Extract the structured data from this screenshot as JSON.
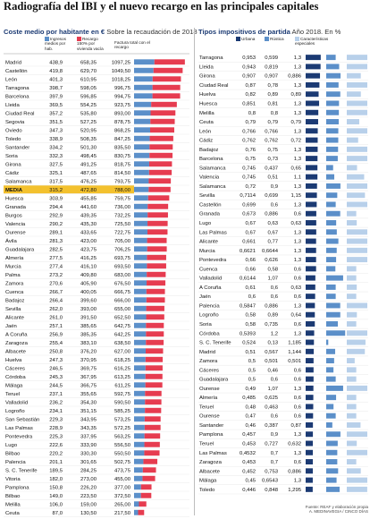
{
  "title": "Radiografía del IBI y el nuevo recargo en las principales capitales",
  "left_heading": {
    "title": "Coste medio por habitante en €",
    "subtitle": "Sobre la recaudación de 2018"
  },
  "right_heading": {
    "title": "Tipos impositivos de partida",
    "subtitle": "Año 2018. En %"
  },
  "source_lines": [
    "Fuente: REAF y elaboración propia",
    "A. MEDINAVEGIA / CINCO DÍAS"
  ],
  "colors": {
    "navy": "#1b3a73",
    "blue": "#5b8fc9",
    "red": "#e63c50",
    "lightblue": "#b8d0ea",
    "highlight": "#f3c12e",
    "title": "#1b3a73"
  },
  "chart_data": [
    {
      "type": "bar",
      "title": "Coste medio por habitante en €",
      "subtitle": "Sobre la recaudación de 2018",
      "legend": [
        "Ingresos medios por hab.",
        "Recargo 150% por vivienda vacía",
        "Factura total con el recargo"
      ],
      "highlight": "MEDIA",
      "categories": [
        "Madrid",
        "Castellón",
        "León",
        "Tarragona",
        "Barcelona",
        "Lleida",
        "Ciudad Real",
        "Segovia",
        "Oviedo",
        "Toledo",
        "Santander",
        "Soria",
        "Girona",
        "Cádiz",
        "Salamanca",
        "MEDIA",
        "Huesca",
        "Granada",
        "Burgos",
        "Valencia",
        "Ourense",
        "Ávila",
        "Guadalajara",
        "Almería",
        "Murcia",
        "Palma",
        "Zamora",
        "Cuenca",
        "Badajoz",
        "Sevilla",
        "Alicante",
        "Jaén",
        "A Coruña",
        "Zaragoza",
        "Albacete",
        "Huelva",
        "Cáceres",
        "Córdoba",
        "Málaga",
        "Teruel",
        "Valladolid",
        "Logroño",
        "San Sebastián",
        "Las Palmas",
        "Pontevedra",
        "Lugo",
        "Bilbao",
        "Palencia",
        "S. C. Tenerife",
        "Vitoria",
        "Pamplona",
        "Bilbao",
        "Melilla",
        "Ceuta"
      ],
      "series": [
        {
          "name": "Ingresos medios por hab.",
          "values": [
            438.9,
            419.8,
            401.3,
            398.7,
            397.9,
            369.5,
            357.2,
            351.5,
            347.3,
            338.9,
            334.2,
            332.3,
            327.5,
            325.1,
            317.5,
            315.2,
            303.9,
            294.4,
            292.9,
            290.2,
            289.1,
            281.3,
            282.5,
            277.5,
            277.4,
            273.2,
            270.6,
            266.7,
            266.4,
            262.0,
            261.0,
            257.1,
            256.9,
            255.4,
            250.8,
            247.3,
            246.5,
            245.3,
            244.5,
            237.1,
            236.2,
            234.1,
            229.3,
            228.9,
            225.3,
            222.6,
            220.2,
            201.1,
            189.5,
            182.0,
            150.8,
            149.0,
            106.0,
            87.0
          ]
        },
        {
          "name": "Recargo 150% por vivienda vacía",
          "values": [
            658.35,
            629.7,
            610.95,
            598.05,
            596.85,
            554.25,
            535.8,
            527.25,
            520.95,
            508.35,
            501.3,
            498.45,
            491.25,
            487.65,
            476.25,
            472.8,
            455.85,
            441.6,
            439.35,
            435.3,
            433.65,
            423.0,
            423.75,
            416.25,
            416.1,
            409.8,
            405.9,
            400.05,
            399.6,
            393.0,
            391.5,
            385.65,
            385.35,
            383.1,
            376.2,
            370.95,
            369.75,
            367.95,
            366.75,
            355.65,
            354.3,
            351.15,
            343.95,
            343.35,
            337.95,
            333.9,
            330.3,
            301.65,
            284.25,
            273.0,
            226.2,
            223.5,
            159.0,
            130.5
          ]
        },
        {
          "name": "Factura total con el recargo",
          "values": [
            1097.25,
            1049.5,
            1018.25,
            996.75,
            994.75,
            923.75,
            893.0,
            878.75,
            868.25,
            847.25,
            835.5,
            830.75,
            818.75,
            814.5,
            793.75,
            788.0,
            759.75,
            736.0,
            732.25,
            725.5,
            722.75,
            705.0,
            706.25,
            693.75,
            693.5,
            683.0,
            676.5,
            666.75,
            666.0,
            655.0,
            652.5,
            642.75,
            642.25,
            638.5,
            627.0,
            618.25,
            616.25,
            613.25,
            611.25,
            592.75,
            590.5,
            585.25,
            573.25,
            572.25,
            563.25,
            556.5,
            550.5,
            502.75,
            473.75,
            455.0,
            377.0,
            372.5,
            265.0,
            217.5
          ]
        }
      ],
      "xlim": [
        0,
        1100
      ]
    },
    {
      "type": "bar",
      "title": "Tipos impositivos de partida",
      "subtitle": "Año 2018. En %",
      "legend": [
        "Urbana",
        "Rústica",
        "Características especiales"
      ],
      "categories": [
        "Tarragona",
        "Lleida",
        "Girona",
        "Ciudad Real",
        "Huelva",
        "Huesca",
        "Melilla",
        "Ceuta",
        "León",
        "Cádiz",
        "Badajoz",
        "Barcelona",
        "Salamanca",
        "Valencia",
        "Salamanca",
        "Sevilla",
        "Castellón",
        "Granada",
        "Lugo",
        "Las Palmas",
        "Alicante",
        "Murcia",
        "Pontevedra",
        "Cuenca",
        "Valladolid",
        "A Coruña",
        "Jaén",
        "Palencia",
        "Logroño",
        "Soria",
        "Córdoba",
        "S. C. Tenerife",
        "Madrid",
        "Zamora",
        "Cáceres",
        "Guadalajara",
        "Ourense",
        "Almería",
        "Teruel",
        "Ourense",
        "Santander",
        "Pamplona",
        "Teruel",
        "Las Palmas",
        "Zaragoza",
        "Albacete",
        "Málaga",
        "Toledo"
      ],
      "series": [
        {
          "name": "Urbana",
          "values": [
            0.953,
            0.943,
            0.907,
            0.87,
            0.82,
            0.851,
            0.8,
            0.79,
            0.766,
            0.762,
            0.76,
            0.75,
            0.745,
            0.745,
            0.72,
            0.7114,
            0.699,
            0.673,
            0.67,
            0.67,
            0.661,
            0.6621,
            0.66,
            0.66,
            0.6144,
            0.61,
            0.6,
            0.5847,
            0.58,
            0.58,
            0.5393,
            0.524,
            0.51,
            0.5,
            0.5,
            0.5,
            0.49,
            0.485,
            0.48,
            0.47,
            0.46,
            0.457,
            0.453,
            0.4532,
            0.453,
            0.452,
            0.45,
            0.446
          ]
        },
        {
          "name": "Rústica",
          "values": [
            0.599,
            0.819,
            0.907,
            0.78,
            0.89,
            0.81,
            0.8,
            0.79,
            0.766,
            0.762,
            0.75,
            0.73,
            0.437,
            0.51,
            0.9,
            0.699,
            0.6,
            0.886,
            0.63,
            0.67,
            0.77,
            0.6644,
            0.626,
            0.58,
            1.07,
            0.6,
            0.6,
            0.886,
            0.89,
            0.735,
            1.2,
            0.13,
            0.567,
            0.501,
            0.46,
            0.6,
            1.07,
            0.625,
            0.463,
            0.6,
            0.387,
            0.9,
            0.727,
            0.7,
            0.7,
            0.753,
            0.6543,
            0.848
          ]
        },
        {
          "name": "Características especiales",
          "values": [
            1.3,
            1.3,
            0.886,
            1.3,
            0.89,
            1.3,
            1.3,
            0.79,
            1.3,
            0.72,
            1.3,
            1.3,
            0.65,
            1.1,
            1.3,
            1.15,
            1.3,
            0.6,
            0.63,
            1.3,
            1.3,
            1.3,
            1.3,
            0.6,
            0.6,
            0.63,
            0.6,
            1.3,
            0.64,
            0.6,
            1.3,
            1.185,
            1.144,
            0.501,
            0.6,
            0.6,
            1.3,
            0.6,
            0.6,
            0.6,
            0.87,
            1.3,
            0.632,
            1.3,
            0.6,
            0.886,
            1.3,
            1.295
          ]
        }
      ],
      "xlim": [
        0,
        1.3
      ]
    }
  ]
}
